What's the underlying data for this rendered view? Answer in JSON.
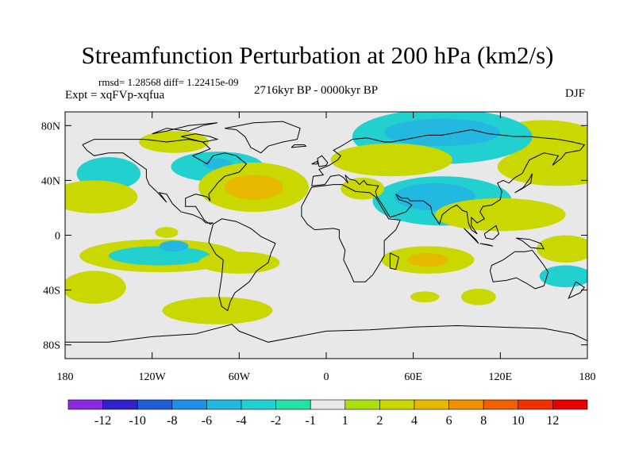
{
  "chart_data": {
    "type": "contour-map",
    "title": "Streamfunction Perturbation at 200 hPa (km2/s)",
    "subtitle_left_top": "rmsd= 1.28568 diff= 1.22415e-09",
    "subtitle_left": "Expt = xqFVp-xqfua",
    "subtitle_center": "2716kyr BP - 0000kyr BP",
    "subtitle_right": "DJF",
    "x_ticks": [
      {
        "lon": -180,
        "label": "180"
      },
      {
        "lon": -120,
        "label": "120W"
      },
      {
        "lon": -60,
        "label": "60W"
      },
      {
        "lon": 0,
        "label": "0"
      },
      {
        "lon": 60,
        "label": "60E"
      },
      {
        "lon": 120,
        "label": "120E"
      },
      {
        "lon": 180,
        "label": "180"
      }
    ],
    "y_ticks": [
      {
        "lat": 80,
        "label": "80N"
      },
      {
        "lat": 40,
        "label": "40N"
      },
      {
        "lat": 0,
        "label": "0"
      },
      {
        "lat": -40,
        "label": "40S"
      },
      {
        "lat": -80,
        "label": "80S"
      }
    ],
    "xlim": [
      -180,
      180
    ],
    "ylim": [
      -90,
      90
    ],
    "colorbar": {
      "colors": [
        "#8a2be2",
        "#3322cc",
        "#1e5fd6",
        "#1e90e6",
        "#22b8e0",
        "#22d0d0",
        "#22e0a8",
        "#e8e8e8",
        "#a8e010",
        "#c8d800",
        "#e6b800",
        "#f09000",
        "#f06000",
        "#f03000",
        "#e80000"
      ],
      "labels": [
        "-12",
        "-10",
        "-8",
        "-6",
        "-4",
        "-2",
        "-1",
        "1",
        "2",
        "4",
        "6",
        "8",
        "10",
        "12"
      ]
    },
    "anomaly_regions": [
      {
        "lon": 150,
        "lat": 70,
        "rx": 38,
        "ry": 14,
        "level": 2
      },
      {
        "lon": -105,
        "lat": 68,
        "rx": 24,
        "ry": 8,
        "level": 2
      },
      {
        "lon": -150,
        "lat": 45,
        "rx": 22,
        "ry": 12,
        "level": -2
      },
      {
        "lon": -75,
        "lat": 50,
        "rx": 32,
        "ry": 11,
        "level": -2
      },
      {
        "lon": -75,
        "lat": 52,
        "rx": 10,
        "ry": 4,
        "level": -4
      },
      {
        "lon": -160,
        "lat": 28,
        "rx": 30,
        "ry": 12,
        "level": 2
      },
      {
        "lon": -50,
        "lat": 35,
        "rx": 38,
        "ry": 18,
        "level": 2
      },
      {
        "lon": -50,
        "lat": 35,
        "rx": 20,
        "ry": 9,
        "level": 4
      },
      {
        "lon": 80,
        "lat": 72,
        "rx": 62,
        "ry": 20,
        "level": -2
      },
      {
        "lon": 80,
        "lat": 75,
        "rx": 40,
        "ry": 10,
        "level": -4
      },
      {
        "lon": 45,
        "lat": 55,
        "rx": 42,
        "ry": 12,
        "level": 2
      },
      {
        "lon": 160,
        "lat": 50,
        "rx": 42,
        "ry": 14,
        "level": 2
      },
      {
        "lon": 80,
        "lat": 25,
        "rx": 48,
        "ry": 18,
        "level": -2
      },
      {
        "lon": 75,
        "lat": 28,
        "rx": 28,
        "ry": 10,
        "level": -4
      },
      {
        "lon": 25,
        "lat": 34,
        "rx": 15,
        "ry": 8,
        "level": 2
      },
      {
        "lon": -115,
        "lat": -15,
        "rx": 55,
        "ry": 12,
        "level": 2
      },
      {
        "lon": -115,
        "lat": -15,
        "rx": 35,
        "ry": 7,
        "level": -2
      },
      {
        "lon": -60,
        "lat": -20,
        "rx": 28,
        "ry": 8,
        "level": 2
      },
      {
        "lon": -105,
        "lat": -8,
        "rx": 10,
        "ry": 4,
        "level": -4
      },
      {
        "lon": -160,
        "lat": -38,
        "rx": 22,
        "ry": 12,
        "level": 2
      },
      {
        "lon": -75,
        "lat": -55,
        "rx": 38,
        "ry": 10,
        "level": 2
      },
      {
        "lon": -110,
        "lat": 2,
        "rx": 8,
        "ry": 4,
        "level": 2
      },
      {
        "lon": 70,
        "lat": -18,
        "rx": 32,
        "ry": 10,
        "level": 2
      },
      {
        "lon": 70,
        "lat": -18,
        "rx": 14,
        "ry": 5,
        "level": 4
      },
      {
        "lon": 105,
        "lat": -45,
        "rx": 12,
        "ry": 6,
        "level": 2
      },
      {
        "lon": 68,
        "lat": -45,
        "rx": 10,
        "ry": 4,
        "level": 2
      },
      {
        "lon": 120,
        "lat": 15,
        "rx": 45,
        "ry": 12,
        "level": 2
      },
      {
        "lon": 165,
        "lat": -30,
        "rx": 18,
        "ry": 8,
        "level": -2
      },
      {
        "lon": 165,
        "lat": -10,
        "rx": 20,
        "ry": 10,
        "level": 2
      }
    ]
  },
  "header": {
    "title": "Streamfunction Perturbation at 200 hPa (km2/s)",
    "rmsd": "rmsd= 1.28568 diff= 1.22415e-09",
    "expt": "Expt = xqFVp-xqfua",
    "period": "2716kyr BP - 0000kyr BP",
    "season": "DJF"
  }
}
